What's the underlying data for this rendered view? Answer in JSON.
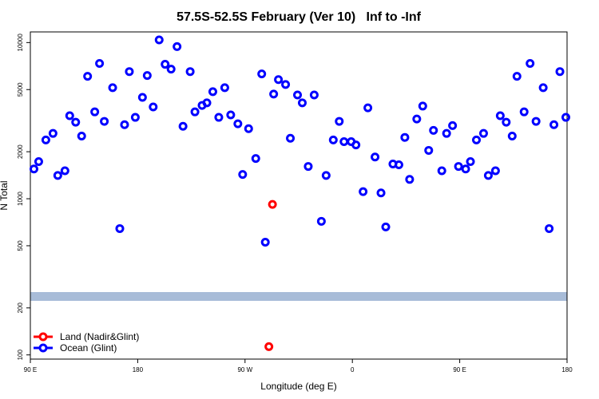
{
  "chart_data": {
    "type": "scatter",
    "title": "57.5S-52.5S February (Ver 10)   Inf to -Inf",
    "x_label": "Longitude (deg E)",
    "y_label": "N Total",
    "log_y": true,
    "legend": "bottom-left",
    "xlim": [
      90,
      540
    ],
    "ylim": [
      94,
      11700
    ],
    "xticks": [
      {
        "value": 90,
        "label": "90 E"
      },
      {
        "value": 180,
        "label": "180"
      },
      {
        "value": 270,
        "label": "90 W"
      },
      {
        "value": 360,
        "label": "0"
      },
      {
        "value": 450,
        "label": "90 E"
      },
      {
        "value": 540,
        "label": "180"
      }
    ],
    "yticks": [
      100,
      200,
      500,
      1000,
      2000,
      5000,
      10000
    ],
    "series": [
      {
        "name": "Land (Nadir&Glint)",
        "color": "#ff0000",
        "x": [
          293,
          290
        ],
        "values": [
          920,
          113
        ]
      },
      {
        "name": "Ocean (Glint)",
        "color": "#0000ff",
        "x": [
          93,
          97,
          103,
          109,
          113,
          119,
          123,
          128,
          133,
          138,
          144,
          148,
          152,
          159,
          165,
          169,
          173,
          178,
          184,
          188,
          193,
          198,
          203,
          208,
          213,
          218,
          224,
          228,
          234,
          238,
          243,
          248,
          253,
          258,
          264,
          268,
          273,
          279,
          284,
          287,
          294,
          298,
          304,
          308,
          314,
          318,
          323,
          328,
          334,
          338,
          344,
          349,
          353,
          359,
          363,
          369,
          373,
          379,
          384,
          388,
          394,
          399,
          404,
          408,
          414,
          419,
          424,
          428,
          435,
          439,
          444,
          449,
          455,
          459,
          464,
          470,
          474,
          480,
          484,
          489,
          494,
          498,
          504,
          509,
          514,
          520,
          525,
          529,
          534,
          539
        ],
        "values": [
          1550,
          1730,
          2380,
          2620,
          1410,
          1510,
          3400,
          3090,
          2520,
          6080,
          3600,
          7350,
          3130,
          5140,
          644,
          2980,
          6520,
          3320,
          4460,
          6150,
          3870,
          10400,
          7260,
          6760,
          9420,
          2910,
          6520,
          3600,
          3960,
          4110,
          4850,
          3320,
          5140,
          3440,
          3020,
          1430,
          2810,
          1810,
          6300,
          527,
          4680,
          5790,
          5390,
          2440,
          4620,
          4110,
          1610,
          4620,
          717,
          1410,
          2380,
          3130,
          2320,
          2320,
          2210,
          1110,
          3820,
          1850,
          1090,
          660,
          1670,
          1650,
          2470,
          1330,
          3240,
          3920,
          2040,
          2740,
          1510,
          2620,
          2940,
          1610,
          1550,
          1730,
          2380,
          2620,
          1410,
          1510,
          3400,
          3090,
          2520,
          6080,
          3600,
          7350,
          3130,
          5140,
          644,
          2980,
          6520,
          3320
        ]
      }
    ]
  }
}
